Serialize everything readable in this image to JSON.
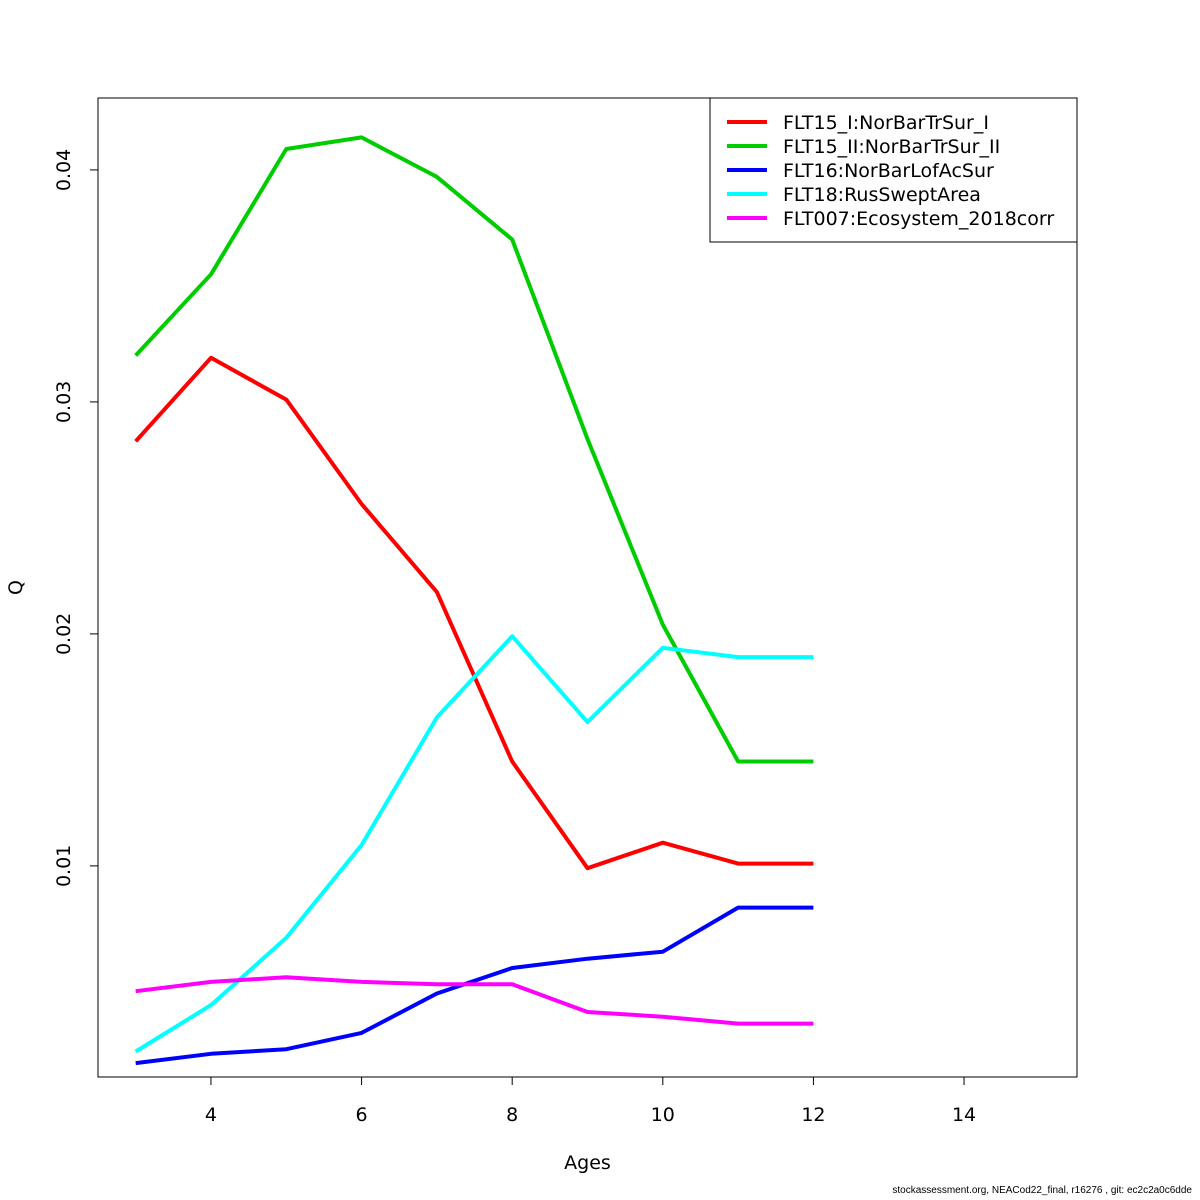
{
  "chart_data": {
    "type": "line",
    "xlabel": "Ages",
    "ylabel": "Q",
    "xlim": [
      2.5,
      15.5
    ],
    "ylim": [
      0.0009,
      0.0431
    ],
    "x_ticks": [
      4,
      6,
      8,
      10,
      12,
      14
    ],
    "y_ticks": [
      0.01,
      0.02,
      0.03,
      0.04
    ],
    "y_tick_labels": [
      "0.01",
      "0.02",
      "0.03",
      "0.04"
    ],
    "legend_position": "top-right",
    "series": [
      {
        "name": "FLT15_I:NorBarTrSur_I",
        "color": "#ff0000",
        "x": [
          3,
          4,
          5,
          6,
          7,
          8,
          9,
          10,
          11,
          12
        ],
        "values": [
          0.0283,
          0.0319,
          0.0301,
          0.0256,
          0.0218,
          0.0145,
          0.0099,
          0.011,
          0.0101,
          0.0101
        ]
      },
      {
        "name": "FLT15_II:NorBarTrSur_II",
        "color": "#00cd00",
        "x": [
          3,
          4,
          5,
          6,
          7,
          8,
          9,
          10,
          11,
          12
        ],
        "values": [
          0.032,
          0.0355,
          0.0409,
          0.0414,
          0.0397,
          0.037,
          0.0284,
          0.0204,
          0.0145,
          0.0145
        ]
      },
      {
        "name": "FLT16:NorBarLofAcSur",
        "color": "#0000ff",
        "x": [
          3,
          4,
          5,
          6,
          7,
          8,
          9,
          10,
          11,
          12
        ],
        "values": [
          0.0015,
          0.0019,
          0.0021,
          0.0028,
          0.0045,
          0.0056,
          0.006,
          0.0063,
          0.0082,
          0.0082
        ]
      },
      {
        "name": "FLT18:RusSweptArea",
        "color": "#00ffff",
        "x": [
          3,
          4,
          5,
          6,
          7,
          8,
          9,
          10,
          11,
          12
        ],
        "values": [
          0.002,
          0.004,
          0.0069,
          0.0109,
          0.0164,
          0.0199,
          0.0162,
          0.0194,
          0.019,
          0.019
        ]
      },
      {
        "name": "FLT007:Ecosystem_2018corr",
        "color": "#ff00ff",
        "x": [
          3,
          4,
          5,
          6,
          7,
          8,
          9,
          10,
          11,
          12
        ],
        "values": [
          0.0046,
          0.005,
          0.0052,
          0.005,
          0.0049,
          0.0049,
          0.0037,
          0.0035,
          0.0032,
          0.0032
        ]
      }
    ]
  },
  "footer": {
    "text": "stockassessment.org, NEACod22_final, r16276 , git: ec2c2a0c6dde"
  }
}
